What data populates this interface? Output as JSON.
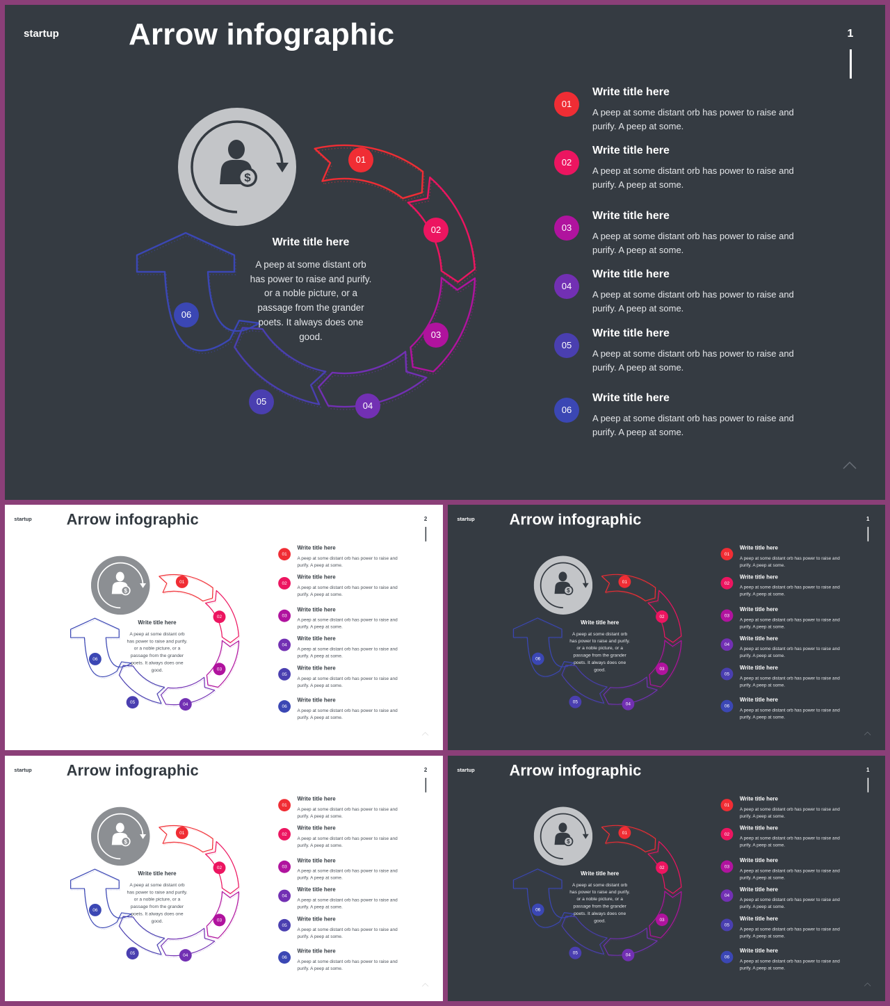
{
  "brand": "startup",
  "title": "Arrow infographic",
  "page_numbers": {
    "dark": "1",
    "light": "2"
  },
  "center": {
    "title": "Write title here",
    "lines": [
      "A peep at some distant orb",
      "has power to raise and purify.",
      "or a noble picture, or a",
      "passage from the grander",
      "poets. It always does one",
      "good."
    ]
  },
  "segments": [
    {
      "num": "01",
      "color": "#f02d34"
    },
    {
      "num": "02",
      "color": "#ec1560"
    },
    {
      "num": "03",
      "color": "#b0139e"
    },
    {
      "num": "04",
      "color": "#7230b3"
    },
    {
      "num": "05",
      "color": "#4a3fb0"
    },
    {
      "num": "06",
      "color": "#3b47b4"
    }
  ],
  "list": [
    {
      "num": "01",
      "title": "Write title here",
      "line1": "A peep at some distant orb has power to raise and",
      "line2": "purify.  A peep at some."
    },
    {
      "num": "02",
      "title": "Write title here",
      "line1": "A peep at some distant orb has power to raise and",
      "line2": "purify.  A peep at some."
    },
    {
      "num": "03",
      "title": "Write title here",
      "line1": "A peep at some distant orb has power to raise and",
      "line2": "purify.  A peep at some."
    },
    {
      "num": "04",
      "title": "Write title here",
      "line1": "A peep at some distant orb has power to raise and",
      "line2": "purify.  A peep at some."
    },
    {
      "num": "05",
      "title": "Write title here",
      "line1": "A peep at some distant orb has power to raise and",
      "line2": "purify.  A peep at some."
    },
    {
      "num": "06",
      "title": "Write title here",
      "line1": "A peep at some distant orb has power to raise and",
      "line2": "purify.  A peep at some."
    }
  ],
  "icons": {
    "center": "person-dollar-icon",
    "cycle": "circular-arrow-icon",
    "nav": "chevron-up-icon"
  },
  "colors": {
    "dark_bg": "#353b42",
    "light_bg": "#ffffff",
    "frame": "#8b3f78",
    "icon_disc_dark": "#c3c5c8",
    "icon_disc_light": "#8c8f93"
  },
  "slides": [
    {
      "id": "slide-main",
      "theme": "dark"
    },
    {
      "id": "slide-thumb-1",
      "theme": "light"
    },
    {
      "id": "slide-thumb-2",
      "theme": "dark"
    },
    {
      "id": "slide-thumb-3",
      "theme": "light"
    },
    {
      "id": "slide-thumb-4",
      "theme": "dark"
    }
  ]
}
